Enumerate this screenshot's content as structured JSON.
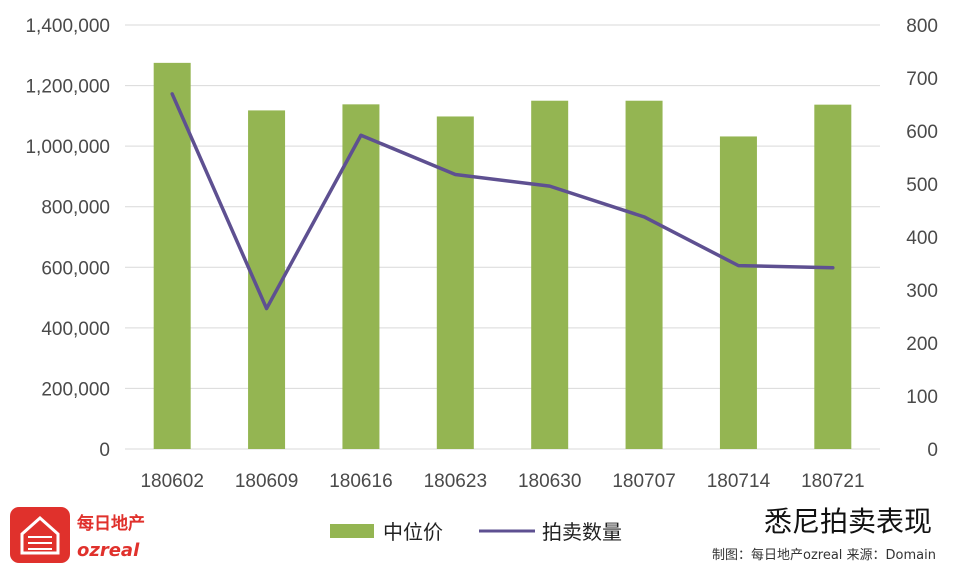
{
  "chart_data": {
    "type": "bar",
    "title": "悉尼拍卖表现",
    "credit": "制图：每日地产ozreal 来源：Domain",
    "categories": [
      "180602",
      "180609",
      "180616",
      "180623",
      "180630",
      "180707",
      "180714",
      "180721"
    ],
    "series": [
      {
        "name": "中位价",
        "type": "bar",
        "axis": "left",
        "color": "#94b552",
        "values": [
          1275000,
          1118000,
          1138000,
          1098000,
          1150000,
          1150000,
          1032000,
          1137000
        ]
      },
      {
        "name": "拍卖数量",
        "type": "line",
        "axis": "right",
        "color": "#5e5091",
        "values": [
          670,
          265,
          592,
          518,
          496,
          438,
          346,
          342
        ]
      }
    ],
    "ylim_left": [
      0,
      1400000
    ],
    "yticks_left": [
      "0",
      "200,000",
      "400,000",
      "600,000",
      "800,000",
      "1,000,000",
      "1,200,000",
      "1,400,000"
    ],
    "ylim_right": [
      0,
      800
    ],
    "yticks_right": [
      "0",
      "100",
      "200",
      "300",
      "400",
      "500",
      "600",
      "700",
      "800"
    ],
    "grid": true,
    "legend": "bottom-center"
  },
  "logo": {
    "name_cn": "每日地产",
    "name_en": "ozreal",
    "color": "#e0312c"
  }
}
